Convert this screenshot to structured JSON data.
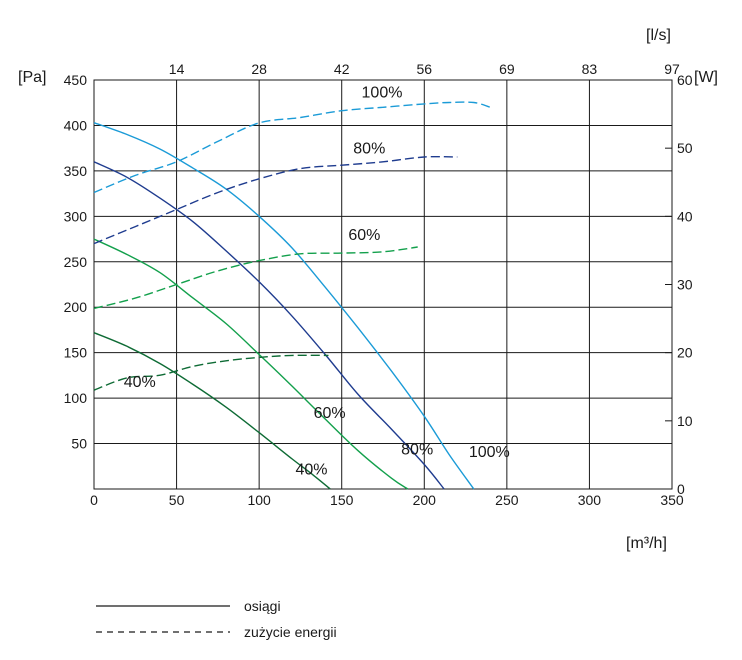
{
  "chart_data": {
    "type": "line",
    "x_unit": "[m³/h]",
    "x_unit_top": "[l/s]",
    "y_unit_left": "[Pa]",
    "y_unit_right": "[W]",
    "x_ticks": [
      "0",
      "50",
      "100",
      "150",
      "200",
      "250",
      "300",
      "350"
    ],
    "x_top_ticks": [
      "14",
      "28",
      "42",
      "56",
      "69",
      "83",
      "97"
    ],
    "y_left_ticks": [
      "50",
      "100",
      "150",
      "200",
      "250",
      "300",
      "350",
      "400",
      "450"
    ],
    "y_right_ticks": [
      "0",
      "10",
      "20",
      "30",
      "40",
      "50",
      "60"
    ],
    "xlim": [
      0,
      350
    ],
    "ylim_left": [
      0,
      450
    ],
    "ylim_right": [
      0,
      60
    ],
    "grid": true,
    "legend": [
      {
        "label": "osiągi",
        "style": "solid"
      },
      {
        "label": "zużycie energii",
        "style": "dashed"
      }
    ],
    "series": [
      {
        "name": "100%",
        "kind": "performance",
        "axis": "left",
        "color": "#1b9bd7",
        "points": [
          [
            0,
            403
          ],
          [
            20,
            390
          ],
          [
            40,
            374
          ],
          [
            60,
            353
          ],
          [
            80,
            330
          ],
          [
            100,
            300
          ],
          [
            120,
            265
          ],
          [
            140,
            222
          ],
          [
            160,
            177
          ],
          [
            180,
            130
          ],
          [
            200,
            80
          ],
          [
            215,
            38
          ],
          [
            230,
            0
          ]
        ]
      },
      {
        "name": "80%",
        "kind": "performance",
        "axis": "left",
        "color": "#1f3c8f",
        "points": [
          [
            0,
            360
          ],
          [
            20,
            343
          ],
          [
            40,
            320
          ],
          [
            60,
            294
          ],
          [
            80,
            262
          ],
          [
            100,
            228
          ],
          [
            120,
            190
          ],
          [
            140,
            148
          ],
          [
            160,
            104
          ],
          [
            180,
            66
          ],
          [
            200,
            27
          ],
          [
            212,
            0
          ]
        ]
      },
      {
        "name": "60%",
        "kind": "performance",
        "axis": "left",
        "color": "#13a04c",
        "points": [
          [
            0,
            275
          ],
          [
            20,
            258
          ],
          [
            40,
            238
          ],
          [
            60,
            210
          ],
          [
            80,
            182
          ],
          [
            100,
            148
          ],
          [
            120,
            113
          ],
          [
            140,
            77
          ],
          [
            160,
            42
          ],
          [
            180,
            12
          ],
          [
            190,
            0
          ]
        ]
      },
      {
        "name": "40%",
        "kind": "performance",
        "axis": "left",
        "color": "#0e6b35",
        "points": [
          [
            0,
            172
          ],
          [
            20,
            157
          ],
          [
            40,
            138
          ],
          [
            60,
            115
          ],
          [
            80,
            90
          ],
          [
            100,
            62
          ],
          [
            120,
            33
          ],
          [
            133,
            15
          ],
          [
            143,
            0
          ]
        ]
      },
      {
        "name": "100%",
        "kind": "energy",
        "axis": "right",
        "color": "#1b9bd7",
        "points": [
          [
            0,
            43.5
          ],
          [
            25,
            46
          ],
          [
            50,
            48
          ],
          [
            75,
            51
          ],
          [
            100,
            53.7
          ],
          [
            125,
            54.5
          ],
          [
            150,
            55.5
          ],
          [
            175,
            56
          ],
          [
            200,
            56.5
          ],
          [
            215,
            56.7
          ],
          [
            230,
            56.7
          ],
          [
            240,
            56
          ]
        ]
      },
      {
        "name": "80%",
        "kind": "energy",
        "axis": "right",
        "color": "#1f3c8f",
        "points": [
          [
            0,
            36
          ],
          [
            25,
            38.5
          ],
          [
            50,
            41
          ],
          [
            75,
            43.5
          ],
          [
            100,
            45.5
          ],
          [
            125,
            47
          ],
          [
            150,
            47.5
          ],
          [
            175,
            48
          ],
          [
            200,
            48.7
          ],
          [
            220,
            48.7
          ]
        ]
      },
      {
        "name": "60%",
        "kind": "energy",
        "axis": "right",
        "color": "#13a04c",
        "points": [
          [
            0,
            26.5
          ],
          [
            25,
            28
          ],
          [
            50,
            30
          ],
          [
            75,
            32
          ],
          [
            100,
            33.5
          ],
          [
            125,
            34.5
          ],
          [
            150,
            34.6
          ],
          [
            175,
            34.8
          ],
          [
            196,
            35.5
          ]
        ]
      },
      {
        "name": "40%",
        "kind": "energy",
        "axis": "right",
        "color": "#0e6b35",
        "points": [
          [
            0,
            14.5
          ],
          [
            20,
            16.3
          ],
          [
            40,
            16.7
          ],
          [
            60,
            18
          ],
          [
            80,
            18.8
          ],
          [
            100,
            19.3
          ],
          [
            120,
            19.6
          ],
          [
            142,
            19.6
          ]
        ]
      }
    ],
    "annotations": [
      {
        "text": "100%",
        "x": 227,
        "y": 35,
        "axis": "left"
      },
      {
        "text": "80%",
        "x": 186,
        "y": 38,
        "axis": "left"
      },
      {
        "text": "60%",
        "x": 133,
        "y": 78,
        "axis": "left"
      },
      {
        "text": "40%",
        "x": 122,
        "y": 16,
        "axis": "left"
      },
      {
        "text": "100%",
        "x": 162,
        "y": 57.4,
        "axis": "right"
      },
      {
        "text": "80%",
        "x": 157,
        "y": 49.2,
        "axis": "right"
      },
      {
        "text": "60%",
        "x": 154,
        "y": 36.5,
        "axis": "right"
      },
      {
        "text": "40%",
        "x": 18,
        "y": 15,
        "axis": "right"
      }
    ]
  }
}
